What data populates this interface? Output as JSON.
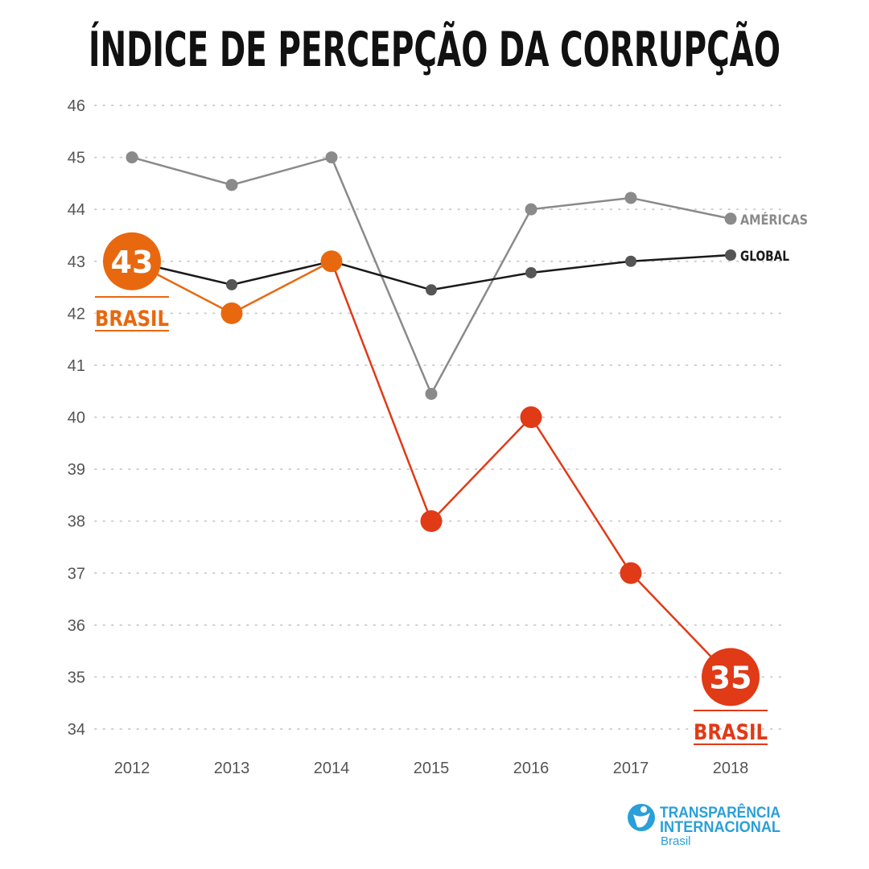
{
  "title": "ÍNDICE DE PERCEPÇÃO DA CORRUPÇÃO",
  "colors": {
    "americas": "#8a8a8a",
    "global": "#1a1a1a",
    "global_marker": "#555555",
    "brasil_early": "#e8680f",
    "brasil_late": "#e03a17",
    "grid": "#cfcfcf",
    "logo": "#2a9fd8"
  },
  "chart_data": {
    "type": "line",
    "x": [
      "2012",
      "2013",
      "2014",
      "2015",
      "2016",
      "2017",
      "2018"
    ],
    "ylim": [
      34,
      46
    ],
    "yticks": [
      "34",
      "35",
      "36",
      "37",
      "38",
      "39",
      "40",
      "41",
      "42",
      "43",
      "44",
      "45",
      "46"
    ],
    "grid": "horizontal dotted",
    "series": [
      {
        "name": "AMÉRICAS",
        "values": [
          45,
          44.47,
          45,
          40.45,
          44,
          44.22,
          43.82
        ]
      },
      {
        "name": "GLOBAL",
        "values": [
          43,
          42.55,
          43,
          42.45,
          42.78,
          43,
          43.12
        ]
      },
      {
        "name": "BRASIL",
        "values": [
          43,
          42,
          43,
          38,
          40,
          37,
          35
        ]
      }
    ],
    "annotations": {
      "start_value": "43",
      "start_label": "BRASIL",
      "end_value": "35",
      "end_label": "BRASIL"
    }
  },
  "logo": {
    "line1": "TRANSPARÊNCIA",
    "line2": "INTERNACIONAL",
    "line3": "Brasil",
    "icon": "globe-person-icon"
  }
}
